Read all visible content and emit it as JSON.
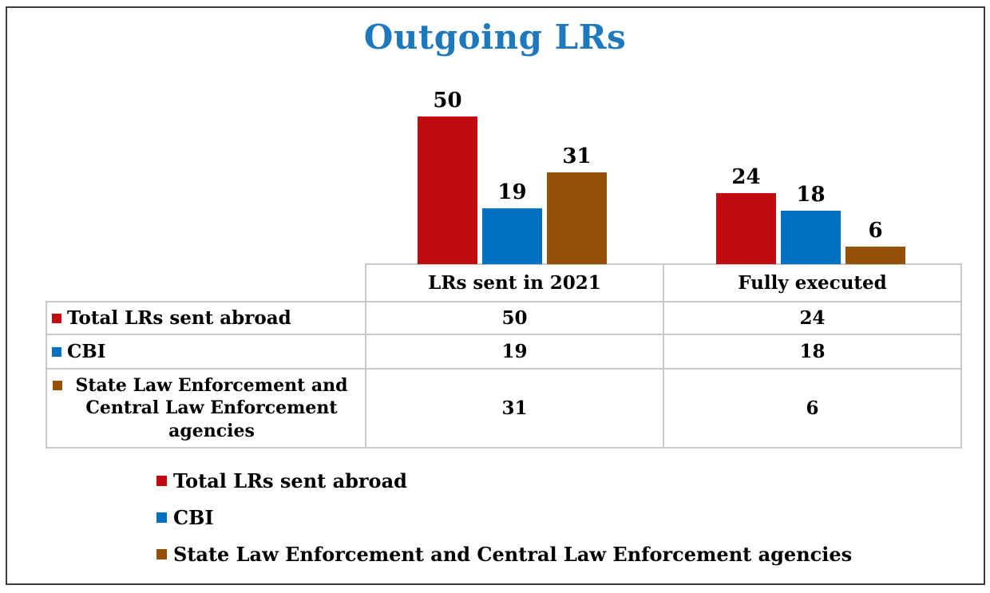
{
  "chart_data": {
    "type": "bar",
    "title": "Outgoing LRs",
    "title_color": "#1e78be",
    "categories": [
      "LRs sent in 2021",
      "Fully executed"
    ],
    "series": [
      {
        "name": "Total LRs sent abroad",
        "color": "#c20b0f",
        "values": [
          50,
          24
        ]
      },
      {
        "name": "CBI",
        "color": "#0070c0",
        "values": [
          19,
          18
        ]
      },
      {
        "name": "State Law Enforcement and Central Law Enforcement agencies",
        "color": "#975007",
        "values": [
          31,
          6
        ]
      }
    ],
    "data_labels": true,
    "legend_position": "bottom",
    "has_data_table": true,
    "grid": false
  }
}
